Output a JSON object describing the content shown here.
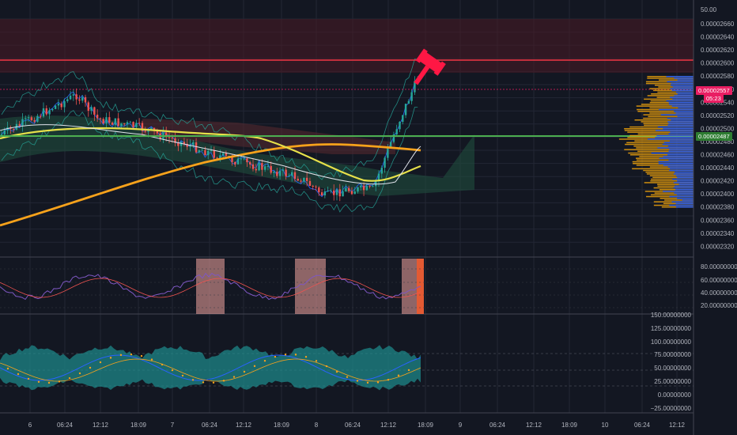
{
  "colors": {
    "background": "#131722",
    "grid": "#2a2e39",
    "up_candle": "#26a69a",
    "down_candle": "#ef5350",
    "ma_orange": "#f7a21b",
    "ma_yellow": "#e6e04a",
    "ma_white": "#e0e3eb",
    "resistance_line": "#f23645",
    "support_line": "#4caf50",
    "volume_profile_orange": "#f0a30a",
    "volume_profile_blue": "#2962ff",
    "gavel_icon": "#ff1744",
    "current_price_badge": "#e91e63",
    "support_badge": "#2e7d32"
  },
  "price_axis": {
    "top_label": "50.00",
    "labels": [
      "0.00002660",
      "0.00002640",
      "0.00002620",
      "0.00002600",
      "0.00002580",
      "0.00002560",
      "0.00002540",
      "0.00002520",
      "0.00002500",
      "0.00002480",
      "0.00002460",
      "0.00002440",
      "0.00002420",
      "0.00002400",
      "0.00002380",
      "0.00002360",
      "0.00002340",
      "0.00002320"
    ],
    "current_price": "0.00002557",
    "countdown": "05:23",
    "support_price": "0.00002487"
  },
  "rsi_axis": {
    "labels": [
      "80.00000000",
      "60.00000000",
      "40.00000000",
      "20.00000000"
    ]
  },
  "osc_axis": {
    "labels": [
      "150.00000000",
      "125.00000000",
      "100.00000000",
      "75.00000000",
      "50.00000000",
      "25.00000000",
      "0.00000000",
      "−25.00000000"
    ]
  },
  "time_axis": {
    "labels": [
      "6",
      "06:24",
      "12:12",
      "18:09",
      "7",
      "06:24",
      "12:12",
      "18:09",
      "8",
      "06:24",
      "12:12",
      "18:09",
      "9",
      "06:24",
      "12:12",
      "18:09",
      "10",
      "06:24",
      "12:12"
    ]
  },
  "chart_data": {
    "type": "candlestick",
    "y_range": [
      2.31e-05,
      2.67e-05
    ],
    "resistance_level": 2.6e-05,
    "support_level": 2.487e-05,
    "last_price": 2.557e-05,
    "rsi_levels": [
      20,
      40,
      60,
      80
    ],
    "osc_levels": [
      25,
      50,
      75
    ]
  }
}
